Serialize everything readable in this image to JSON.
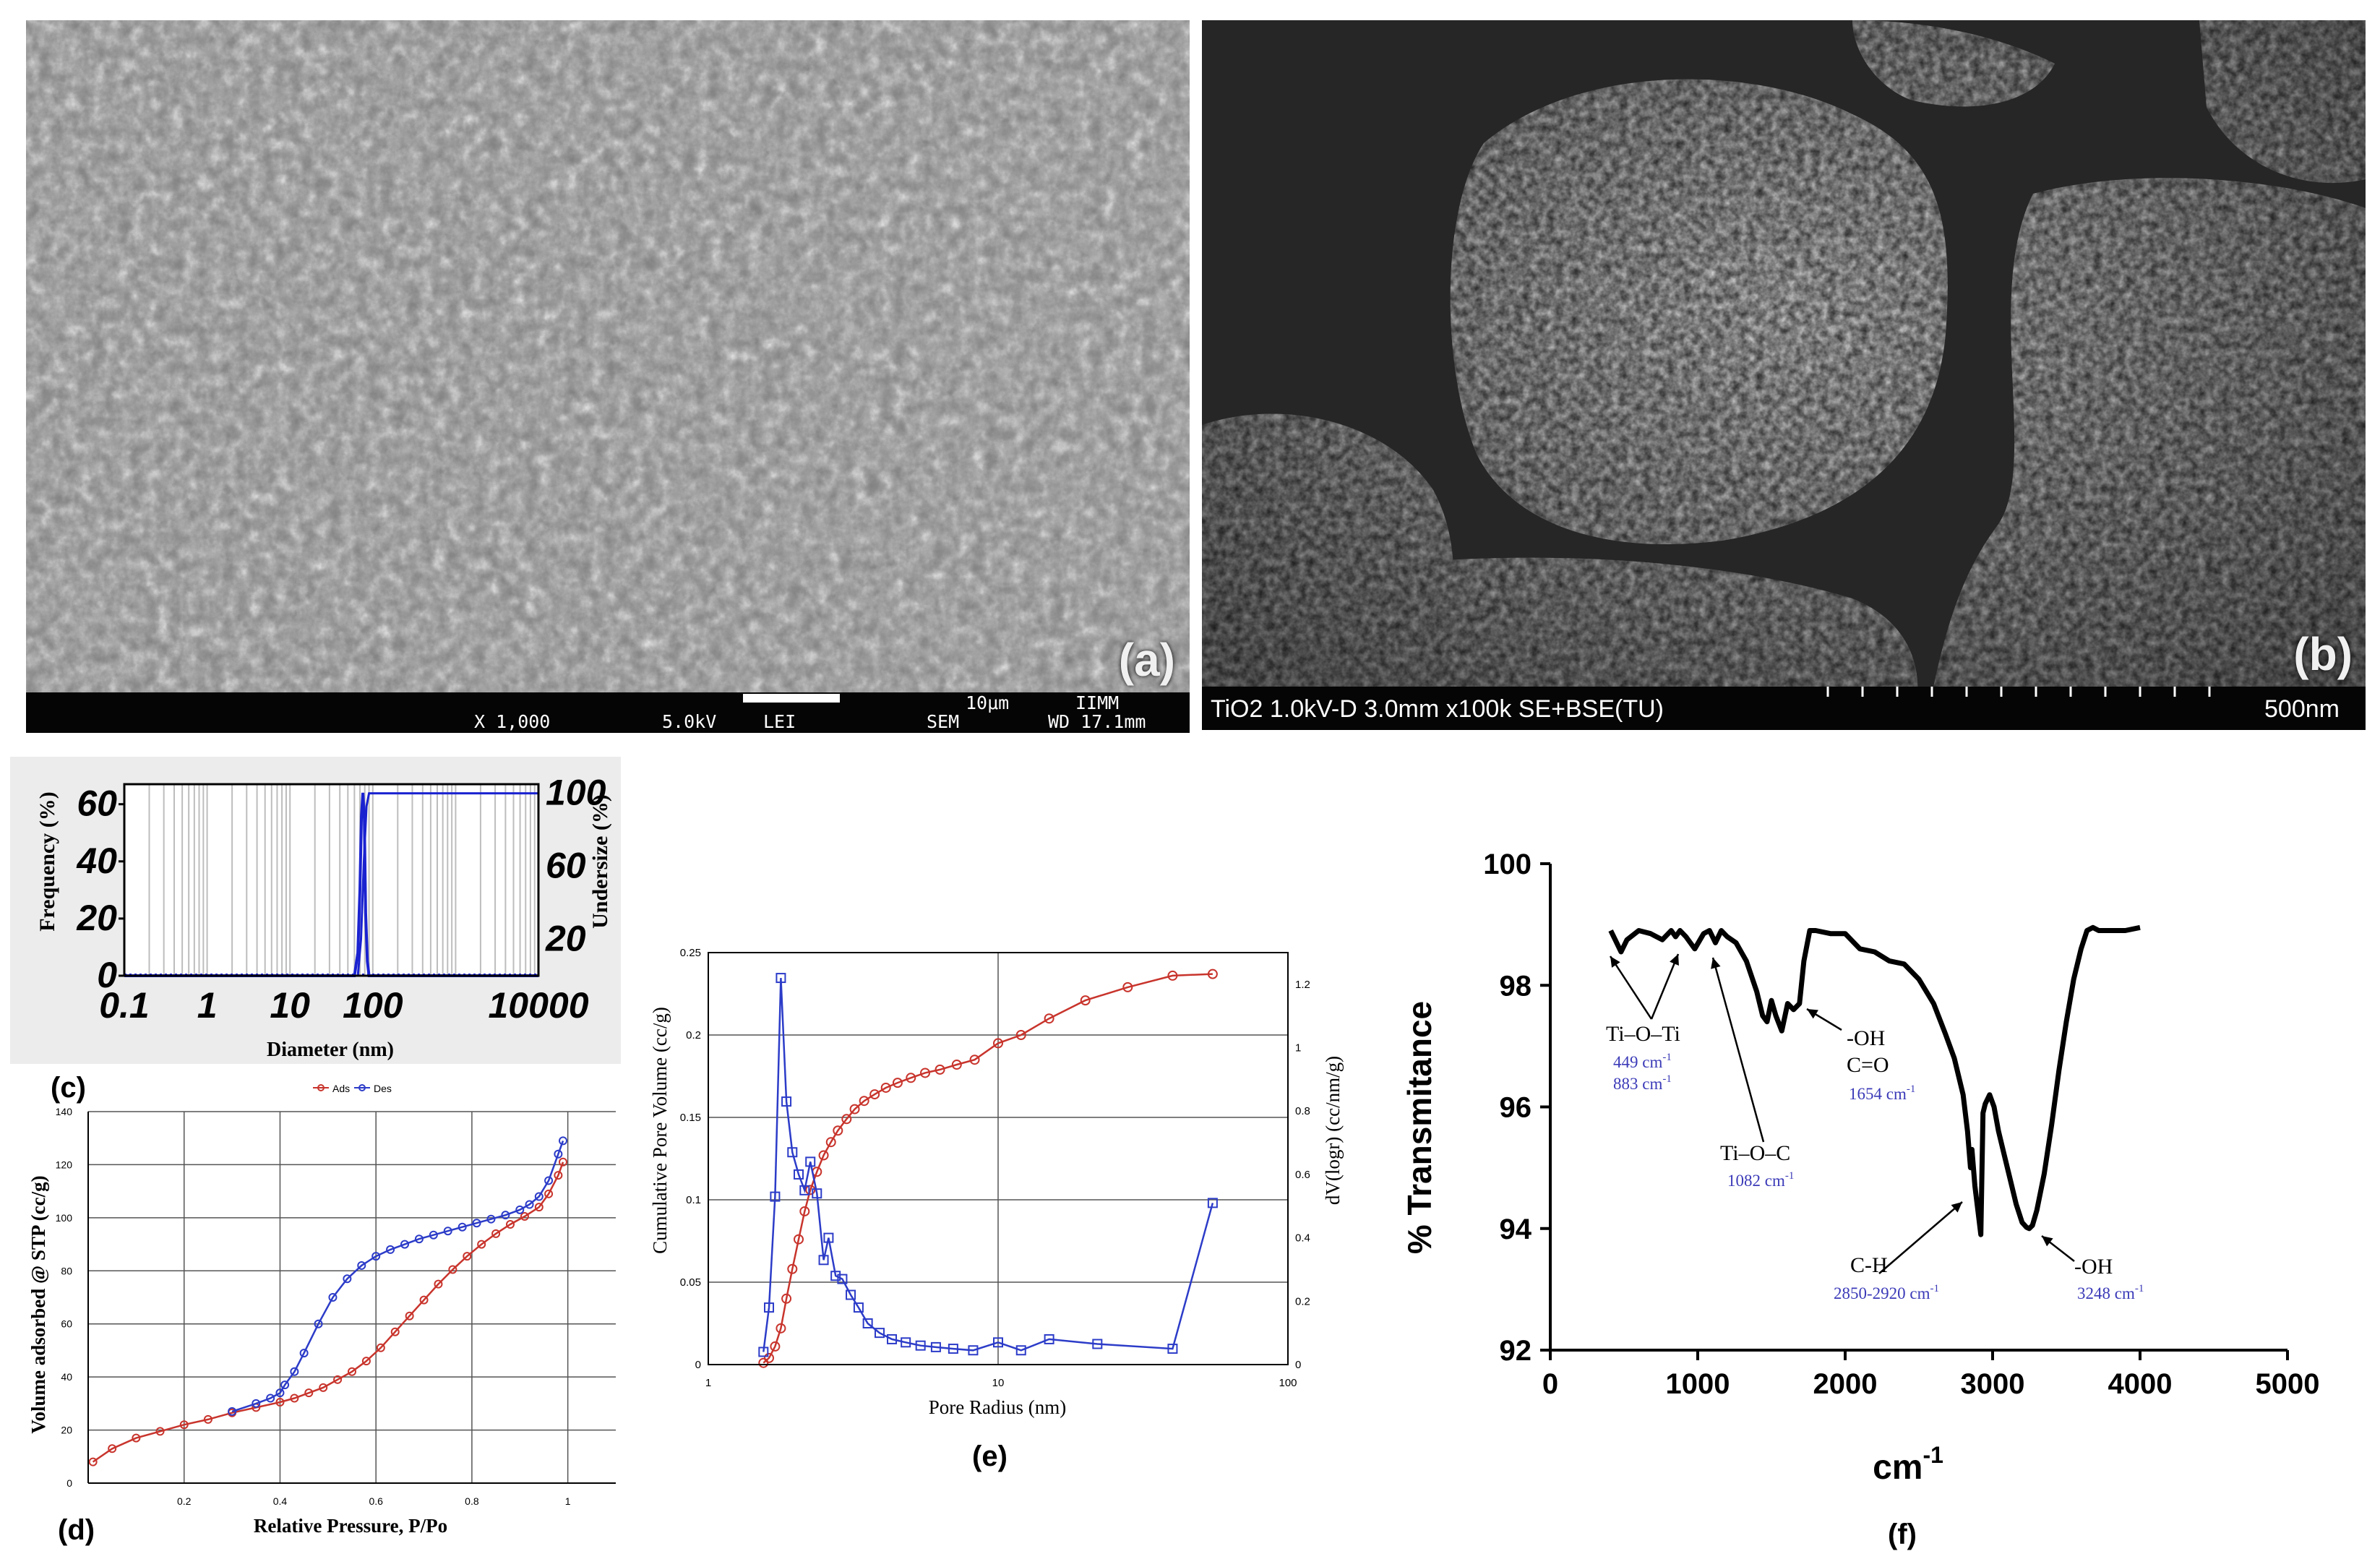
{
  "panel_a": {
    "letter": "(a)",
    "bar_text": [
      "X 1,000",
      "5.0kV",
      "LEI",
      "SEM",
      "WD 17.1mm"
    ],
    "scale_label": "10μm",
    "lab_label": "IIMM"
  },
  "panel_b": {
    "letter": "(b)",
    "bar_text": "TiO2 1.0kV-D 3.0mm x100k SE+BSE(TU)",
    "scale_label": "500nm"
  },
  "chart_data": [
    {
      "id": "c",
      "type": "line",
      "panel_label": "(c)",
      "xlabel": "Diameter (nm)",
      "ylabel": "Frequency (%)",
      "y2label": "Undersize (%)",
      "xscale": "log",
      "xlim": [
        0.1,
        10000
      ],
      "ylim": [
        0,
        67
      ],
      "y2lim": [
        0,
        105
      ],
      "x_ticks": [
        "0.1",
        "1",
        "10",
        "100",
        "10000"
      ],
      "y_ticks": [
        "0",
        "20",
        "40",
        "60"
      ],
      "y2_ticks": [
        "20",
        "60",
        "100"
      ],
      "grid": true,
      "series": [
        {
          "axis": "left",
          "color": "#1a22d0",
          "x": [
            0.1,
            60,
            66,
            70,
            73,
            76,
            79,
            82,
            86,
            90,
            10000
          ],
          "y": [
            0,
            0,
            8,
            30,
            56,
            64,
            55,
            22,
            5,
            0,
            0
          ]
        },
        {
          "axis": "right",
          "color": "#1a22d0",
          "x": [
            0.1,
            66,
            72,
            78,
            84,
            90,
            10000
          ],
          "y": [
            0,
            0,
            20,
            62,
            93,
            100,
            100
          ]
        }
      ]
    },
    {
      "id": "d",
      "type": "line",
      "panel_label": "(d)",
      "xlabel": "Relative Pressure, P/Po",
      "ylabel": "Volume adsorbed @ STP (cc/g)",
      "xlim": [
        0,
        1.1
      ],
      "ylim": [
        0,
        140
      ],
      "x_ticks": [
        "0.2",
        "0.4",
        "0.6",
        "0.8",
        "1"
      ],
      "y_ticks": [
        "0",
        "20",
        "40",
        "60",
        "80",
        "100",
        "120",
        "140"
      ],
      "grid": true,
      "legend": "top-center",
      "series": [
        {
          "name": "Ads",
          "color": "#c8342c",
          "marker": "circle",
          "x": [
            0.01,
            0.05,
            0.1,
            0.15,
            0.2,
            0.25,
            0.3,
            0.35,
            0.4,
            0.43,
            0.46,
            0.49,
            0.52,
            0.55,
            0.58,
            0.61,
            0.64,
            0.67,
            0.7,
            0.73,
            0.76,
            0.79,
            0.82,
            0.85,
            0.88,
            0.91,
            0.94,
            0.96,
            0.98,
            0.99
          ],
          "y": [
            8,
            13,
            17,
            19.5,
            22,
            24,
            26.5,
            28.5,
            30.5,
            32,
            34,
            36,
            39,
            42,
            46,
            51,
            57,
            63,
            69,
            75,
            80.5,
            85.5,
            90,
            94,
            97.5,
            100.5,
            104,
            109,
            116,
            121
          ]
        },
        {
          "name": "Des",
          "color": "#2c3cc8",
          "marker": "circle",
          "x": [
            0.99,
            0.98,
            0.96,
            0.94,
            0.92,
            0.9,
            0.87,
            0.84,
            0.81,
            0.78,
            0.75,
            0.72,
            0.69,
            0.66,
            0.63,
            0.6,
            0.57,
            0.54,
            0.51,
            0.48,
            0.45,
            0.43,
            0.41,
            0.4,
            0.38,
            0.35,
            0.3
          ],
          "y": [
            129,
            124,
            114,
            108,
            105,
            103,
            101,
            99.5,
            98,
            96.5,
            95,
            93.5,
            92,
            90,
            88,
            85.5,
            82,
            77,
            70,
            60,
            49,
            42,
            37,
            34,
            32,
            30,
            27
          ]
        }
      ]
    },
    {
      "id": "e",
      "type": "line",
      "panel_label": "(e)",
      "xlabel": "Pore Radius (nm)",
      "ylabel": "Cumulative Pore Volume (cc/g)",
      "y2label": "dV(logr) (cc/nm/g)",
      "xscale": "log",
      "xlim": [
        1,
        100
      ],
      "ylim": [
        0,
        0.25
      ],
      "y2lim": [
        0,
        1.3
      ],
      "x_ticks": [
        "1",
        "10",
        "100"
      ],
      "y_ticks": [
        "0",
        "0.05",
        "0.1",
        "0.15",
        "0.2",
        "0.25"
      ],
      "y2_ticks": [
        "0",
        "0.2",
        "0.4",
        "0.6",
        "0.8",
        "1",
        "1.2"
      ],
      "grid": true,
      "series": [
        {
          "name": "Cumulative Pore Volume",
          "axis": "left",
          "color": "#c8342c",
          "marker": "circle",
          "x": [
            1.55,
            1.62,
            1.7,
            1.78,
            1.86,
            1.95,
            2.05,
            2.15,
            2.25,
            2.37,
            2.5,
            2.65,
            2.8,
            3.0,
            3.2,
            3.45,
            3.75,
            4.1,
            4.5,
            5.0,
            5.6,
            6.3,
            7.2,
            8.3,
            10,
            12,
            15,
            20,
            28,
            40,
            55
          ],
          "y": [
            0.001,
            0.004,
            0.011,
            0.022,
            0.04,
            0.058,
            0.076,
            0.093,
            0.106,
            0.117,
            0.127,
            0.135,
            0.142,
            0.149,
            0.155,
            0.16,
            0.164,
            0.168,
            0.171,
            0.174,
            0.177,
            0.179,
            0.182,
            0.185,
            0.195,
            0.2,
            0.21,
            0.221,
            0.229,
            0.236,
            0.237
          ]
        },
        {
          "name": "dV(logr)",
          "axis": "right",
          "color": "#2c3cc8",
          "marker": "square",
          "x": [
            1.55,
            1.62,
            1.7,
            1.78,
            1.86,
            1.95,
            2.05,
            2.15,
            2.25,
            2.37,
            2.5,
            2.6,
            2.75,
            2.9,
            3.1,
            3.3,
            3.55,
            3.9,
            4.3,
            4.8,
            5.4,
            6.1,
            7.0,
            8.2,
            10,
            12,
            15,
            22,
            40,
            55
          ],
          "y": [
            0.04,
            0.18,
            0.53,
            1.22,
            0.83,
            0.67,
            0.6,
            0.55,
            0.64,
            0.54,
            0.33,
            0.4,
            0.28,
            0.27,
            0.22,
            0.18,
            0.13,
            0.1,
            0.08,
            0.07,
            0.06,
            0.055,
            0.05,
            0.045,
            0.07,
            0.045,
            0.08,
            0.065,
            0.05,
            0.51
          ]
        }
      ]
    },
    {
      "id": "f",
      "type": "line",
      "panel_label": "(f)",
      "xlabel": "cm",
      "xlabel_sup": "-1",
      "ylabel": "% Transmitance",
      "xlim": [
        0,
        5000
      ],
      "ylim": [
        92,
        100
      ],
      "x_ticks": [
        "0",
        "1000",
        "2000",
        "3000",
        "4000",
        "5000"
      ],
      "y_ticks": [
        "92",
        "94",
        "96",
        "98",
        "100"
      ],
      "grid": false,
      "series": [
        {
          "color": "#000000",
          "x": [
            410,
            440,
            480,
            520,
            600,
            680,
            760,
            820,
            850,
            880,
            920,
            980,
            1040,
            1080,
            1120,
            1160,
            1200,
            1260,
            1330,
            1400,
            1440,
            1470,
            1500,
            1530,
            1570,
            1610,
            1650,
            1690,
            1720,
            1760,
            1800,
            1900,
            2000,
            2100,
            2200,
            2300,
            2400,
            2500,
            2600,
            2680,
            2740,
            2800,
            2830,
            2850,
            2860,
            2880,
            2900,
            2920,
            2935,
            2950,
            2980,
            3010,
            3040,
            3080,
            3120,
            3160,
            3200,
            3230,
            3248,
            3270,
            3300,
            3350,
            3400,
            3450,
            3500,
            3550,
            3600,
            3640,
            3680,
            3720,
            3800,
            3900,
            4000
          ],
          "y": [
            98.9,
            98.75,
            98.55,
            98.75,
            98.9,
            98.85,
            98.75,
            98.9,
            98.8,
            98.9,
            98.8,
            98.6,
            98.85,
            98.9,
            98.7,
            98.9,
            98.8,
            98.7,
            98.4,
            97.9,
            97.5,
            97.4,
            97.75,
            97.5,
            97.25,
            97.7,
            97.6,
            97.7,
            98.4,
            98.9,
            98.9,
            98.85,
            98.85,
            98.6,
            98.55,
            98.4,
            98.35,
            98.1,
            97.7,
            97.2,
            96.8,
            96.2,
            95.6,
            95.0,
            95.3,
            94.7,
            94.3,
            93.9,
            95.9,
            96.05,
            96.2,
            96.0,
            95.6,
            95.2,
            94.8,
            94.4,
            94.1,
            94.02,
            94.0,
            94.05,
            94.3,
            94.9,
            95.7,
            96.6,
            97.4,
            98.1,
            98.6,
            98.9,
            98.95,
            98.9,
            98.9,
            98.9,
            98.95
          ]
        }
      ],
      "annotations": {
        "tioti": {
          "label": "Ti–O–Ti",
          "v1": "449 cm",
          "v2": "883 cm",
          "sup": "-1"
        },
        "tioc": {
          "label": "Ti–O–C",
          "v": "1082 cm",
          "sup": "-1"
        },
        "oh_co": {
          "l1": "-OH",
          "l2": "C=O",
          "v": "1654 cm",
          "sup": "-1"
        },
        "ch": {
          "label": "C-H",
          "v": "2850-2920 cm",
          "sup": "-1"
        },
        "oh": {
          "label": "-OH",
          "v": "3248 cm",
          "sup": "-1"
        }
      }
    }
  ]
}
